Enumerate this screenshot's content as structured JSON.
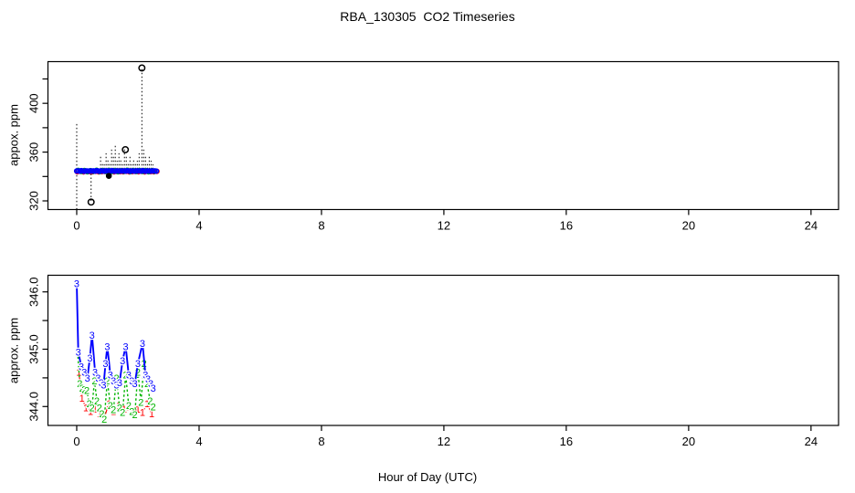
{
  "title": "RBA_130305  CO2 Timeseries",
  "xlabel": "Hour of Day (UTC)",
  "colors": {
    "series1": "#ff0000",
    "series2": "#00b400",
    "series3": "#0000ff",
    "outlier": "#000000",
    "axis": "#000000"
  },
  "chart_data": [
    {
      "type": "scatter",
      "panel": "top",
      "title": "",
      "ylabel": "appox. ppm",
      "xlabel": "",
      "xlim": [
        -0.94,
        24.9
      ],
      "ylim": [
        312.9,
        434.2
      ],
      "xticks": [
        0,
        4,
        8,
        12,
        16,
        20,
        24
      ],
      "xtick_labels": [
        "0",
        "4",
        "8",
        "12",
        "16",
        "20",
        "24"
      ],
      "yticks": [
        320,
        340,
        360,
        380,
        400,
        420
      ],
      "ytick_labels": [
        "320",
        "",
        "360",
        "",
        "400",
        ""
      ],
      "grid": false,
      "legend": "none",
      "stems_style": "dotted",
      "stems": [
        [
          0.0,
          313,
          384
        ],
        [
          0.47,
          320,
          344
        ],
        [
          0.78,
          346,
          357
        ],
        [
          0.84,
          346,
          352
        ],
        [
          0.9,
          346,
          350
        ],
        [
          0.96,
          346,
          359
        ],
        [
          1.02,
          346,
          355
        ],
        [
          1.08,
          346,
          351
        ],
        [
          1.14,
          346,
          362
        ],
        [
          1.2,
          346,
          357
        ],
        [
          1.26,
          346,
          366
        ],
        [
          1.32,
          346,
          353
        ],
        [
          1.38,
          346,
          359
        ],
        [
          1.44,
          346,
          355
        ],
        [
          1.5,
          346,
          350
        ],
        [
          1.56,
          346,
          363
        ],
        [
          1.62,
          346,
          358
        ],
        [
          1.68,
          346,
          352
        ],
        [
          1.74,
          346,
          357
        ],
        [
          1.8,
          346,
          350
        ],
        [
          1.86,
          346,
          355
        ],
        [
          1.92,
          346,
          351
        ],
        [
          1.98,
          346,
          353
        ],
        [
          2.04,
          346,
          359
        ],
        [
          2.13,
          346,
          428
        ],
        [
          2.19,
          346,
          362
        ],
        [
          2.25,
          346,
          357
        ],
        [
          2.31,
          346,
          352
        ],
        [
          2.37,
          346,
          358
        ],
        [
          2.43,
          346,
          353
        ],
        [
          2.49,
          346,
          350
        ]
      ],
      "outliers_open": [
        [
          0.47,
          319
        ],
        [
          1.59,
          362
        ],
        [
          2.13,
          429
        ]
      ],
      "outliers_filled": [
        [
          1.05,
          340.5
        ]
      ],
      "series": [
        {
          "name": "1",
          "color": "#ff0000",
          "marker": "circle",
          "points": [
            [
              0.02,
              343.9
            ],
            [
              0.12,
              344.2
            ],
            [
              0.22,
              343.8
            ],
            [
              0.32,
              344.1
            ],
            [
              0.42,
              344.0
            ],
            [
              0.52,
              343.9
            ],
            [
              0.62,
              344.2
            ],
            [
              0.72,
              343.8
            ],
            [
              0.82,
              344.0
            ],
            [
              0.92,
              344.1
            ],
            [
              1.02,
              343.9
            ],
            [
              1.12,
              344.2
            ],
            [
              1.22,
              343.8
            ],
            [
              1.32,
              344.1
            ],
            [
              1.42,
              344.0
            ],
            [
              1.52,
              343.9
            ],
            [
              1.62,
              344.2
            ],
            [
              1.72,
              343.8
            ],
            [
              1.82,
              344.0
            ],
            [
              1.92,
              344.1
            ],
            [
              2.02,
              343.9
            ],
            [
              2.12,
              344.2
            ],
            [
              2.22,
              343.8
            ],
            [
              2.32,
              344.1
            ],
            [
              2.42,
              344.0
            ],
            [
              2.52,
              343.9
            ],
            [
              2.62,
              344.2
            ]
          ]
        },
        {
          "name": "2",
          "color": "#00b400",
          "marker": "circle",
          "points": [
            [
              0.05,
              344.9
            ],
            [
              0.15,
              344.1
            ],
            [
              0.25,
              344.8
            ],
            [
              0.35,
              343.9
            ],
            [
              0.45,
              344.7
            ],
            [
              0.55,
              344.2
            ],
            [
              0.65,
              345.0
            ],
            [
              0.75,
              344.0
            ],
            [
              0.85,
              344.8
            ],
            [
              0.95,
              344.1
            ],
            [
              1.05,
              344.9
            ],
            [
              1.15,
              344.1
            ],
            [
              1.25,
              344.8
            ],
            [
              1.35,
              343.9
            ],
            [
              1.45,
              344.7
            ],
            [
              1.55,
              344.2
            ],
            [
              1.65,
              345.0
            ],
            [
              1.75,
              344.0
            ],
            [
              1.85,
              344.8
            ],
            [
              1.95,
              344.1
            ],
            [
              2.05,
              344.9
            ],
            [
              2.15,
              344.1
            ],
            [
              2.25,
              344.8
            ],
            [
              2.35,
              343.9
            ],
            [
              2.45,
              344.7
            ],
            [
              2.55,
              344.2
            ]
          ]
        },
        {
          "name": "3",
          "color": "#0000ff",
          "marker": "circle",
          "points": [
            [
              0.0,
              344.5
            ],
            [
              0.05,
              344.6
            ],
            [
              0.1,
              344.4
            ],
            [
              0.15,
              344.7
            ],
            [
              0.2,
              344.5
            ],
            [
              0.25,
              344.3
            ],
            [
              0.3,
              344.6
            ],
            [
              0.35,
              344.5
            ],
            [
              0.4,
              344.4
            ],
            [
              0.45,
              344.6
            ],
            [
              0.5,
              344.5
            ],
            [
              0.55,
              344.6
            ],
            [
              0.6,
              344.4
            ],
            [
              0.65,
              344.7
            ],
            [
              0.7,
              344.5
            ],
            [
              0.75,
              344.3
            ],
            [
              0.8,
              344.6
            ],
            [
              0.85,
              344.5
            ],
            [
              0.9,
              344.4
            ],
            [
              0.95,
              344.6
            ],
            [
              1.0,
              344.5
            ],
            [
              1.05,
              344.6
            ],
            [
              1.1,
              344.4
            ],
            [
              1.15,
              344.7
            ],
            [
              1.2,
              344.5
            ],
            [
              1.25,
              344.3
            ],
            [
              1.3,
              344.6
            ],
            [
              1.35,
              344.5
            ],
            [
              1.4,
              344.4
            ],
            [
              1.45,
              344.6
            ],
            [
              1.5,
              344.5
            ],
            [
              1.55,
              344.6
            ],
            [
              1.6,
              344.4
            ],
            [
              1.65,
              344.7
            ],
            [
              1.7,
              344.5
            ],
            [
              1.75,
              344.3
            ],
            [
              1.8,
              344.6
            ],
            [
              1.85,
              344.5
            ],
            [
              1.9,
              344.4
            ],
            [
              1.95,
              344.6
            ],
            [
              2.0,
              344.5
            ],
            [
              2.05,
              344.6
            ],
            [
              2.1,
              344.4
            ],
            [
              2.15,
              344.7
            ],
            [
              2.2,
              344.5
            ],
            [
              2.25,
              344.3
            ],
            [
              2.3,
              344.6
            ],
            [
              2.35,
              344.5
            ],
            [
              2.4,
              344.4
            ],
            [
              2.45,
              344.6
            ],
            [
              2.5,
              344.5
            ],
            [
              2.55,
              344.6
            ],
            [
              2.6,
              344.4
            ]
          ]
        }
      ]
    },
    {
      "type": "line",
      "panel": "bottom",
      "title": "",
      "ylabel": "approx. ppm",
      "xlabel": "Hour of Day (UTC)",
      "xlim": [
        -0.94,
        24.9
      ],
      "ylim": [
        343.67,
        346.29
      ],
      "xticks": [
        0,
        4,
        8,
        12,
        16,
        20,
        24
      ],
      "xtick_labels": [
        "0",
        "4",
        "8",
        "12",
        "16",
        "20",
        "24"
      ],
      "yticks": [
        344.0,
        344.5,
        345.0,
        345.5,
        346.0
      ],
      "ytick_labels": [
        "344.0",
        "",
        "345.0",
        "",
        "346.0"
      ],
      "grid": false,
      "legend": "none",
      "series": [
        {
          "name": "1",
          "color": "#ff0000",
          "marker": "1",
          "line": "solid",
          "width": 1.2,
          "points": [
            [
              0.07,
              344.6
            ],
            [
              0.17,
              344.15
            ],
            [
              0.3,
              343.98
            ],
            [
              0.45,
              343.92
            ],
            [
              0.6,
              343.96
            ],
            [
              0.75,
              343.88
            ],
            [
              0.9,
              343.8
            ],
            [
              1.05,
              344.05
            ],
            [
              1.2,
              343.92
            ],
            [
              1.38,
              344.02
            ],
            [
              1.55,
              343.96
            ],
            [
              1.7,
              344.0
            ],
            [
              1.85,
              343.9
            ],
            [
              2.0,
              343.96
            ],
            [
              2.15,
              343.9
            ],
            [
              2.3,
              344.05
            ],
            [
              2.45,
              343.88
            ]
          ]
        },
        {
          "name": "2",
          "color": "#00b400",
          "marker": "2",
          "line": "dotted",
          "width": 1.4,
          "points": [
            [
              0.03,
              344.95
            ],
            [
              0.1,
              344.4
            ],
            [
              0.17,
              344.32
            ],
            [
              0.25,
              344.3
            ],
            [
              0.33,
              344.28
            ],
            [
              0.41,
              344.05
            ],
            [
              0.5,
              343.98
            ],
            [
              0.58,
              344.45
            ],
            [
              0.66,
              344.1
            ],
            [
              0.74,
              343.98
            ],
            [
              0.82,
              343.88
            ],
            [
              0.9,
              343.78
            ],
            [
              1.0,
              344.45
            ],
            [
              1.1,
              344.02
            ],
            [
              1.2,
              343.95
            ],
            [
              1.3,
              344.5
            ],
            [
              1.4,
              343.98
            ],
            [
              1.5,
              343.9
            ],
            [
              1.6,
              344.55
            ],
            [
              1.7,
              344.02
            ],
            [
              1.8,
              343.92
            ],
            [
              1.9,
              343.86
            ],
            [
              2.0,
              344.6
            ],
            [
              2.1,
              344.08
            ],
            [
              2.2,
              344.75
            ],
            [
              2.3,
              344.4
            ],
            [
              2.4,
              344.1
            ],
            [
              2.5,
              344.0
            ]
          ]
        },
        {
          "name": "3",
          "color": "#0000ff",
          "marker": "3",
          "line": "solid",
          "width": 1.9,
          "points": [
            [
              0.0,
              346.15
            ],
            [
              0.05,
              344.95
            ],
            [
              0.15,
              344.7
            ],
            [
              0.25,
              344.6
            ],
            [
              0.35,
              344.5
            ],
            [
              0.43,
              344.85
            ],
            [
              0.5,
              345.25
            ],
            [
              0.6,
              344.6
            ],
            [
              0.7,
              344.5
            ],
            [
              0.8,
              344.42
            ],
            [
              0.88,
              344.38
            ],
            [
              0.94,
              344.75
            ],
            [
              1.0,
              345.05
            ],
            [
              1.1,
              344.55
            ],
            [
              1.2,
              344.45
            ],
            [
              1.3,
              344.38
            ],
            [
              1.4,
              344.42
            ],
            [
              1.5,
              344.8
            ],
            [
              1.6,
              345.05
            ],
            [
              1.7,
              344.55
            ],
            [
              1.8,
              344.45
            ],
            [
              1.9,
              344.4
            ],
            [
              2.0,
              344.75
            ],
            [
              2.15,
              345.1
            ],
            [
              2.25,
              344.55
            ],
            [
              2.33,
              344.48
            ],
            [
              2.42,
              344.4
            ],
            [
              2.5,
              344.32
            ]
          ]
        }
      ]
    }
  ]
}
